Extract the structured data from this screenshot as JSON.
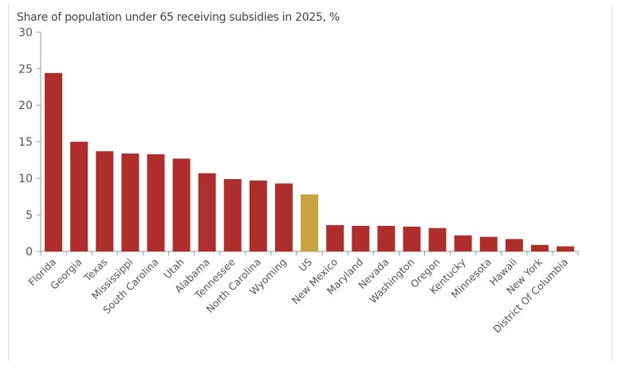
{
  "chart_data": {
    "type": "bar",
    "subtitle": "Share of population under 65 receiving subsidies in 2025, %",
    "categories": [
      "Florida",
      "Georgia",
      "Texas",
      "Mississippi",
      "South Carolina",
      "Utah",
      "Alabama",
      "Tennessee",
      "North Carolina",
      "Wyoming",
      "US",
      "New Mexico",
      "Maryland",
      "Nevada",
      "Washington",
      "Oregon",
      "Kentucky",
      "Minnesota",
      "Hawaii",
      "New York",
      "District Of Columbia"
    ],
    "values": [
      24.4,
      15.0,
      13.7,
      13.4,
      13.3,
      12.7,
      10.7,
      9.9,
      9.7,
      9.3,
      7.8,
      3.6,
      3.5,
      3.5,
      3.4,
      3.2,
      2.2,
      2.0,
      1.7,
      0.9,
      0.7
    ],
    "ylim": [
      0,
      30
    ],
    "yticks": [
      0,
      5,
      10,
      15,
      20,
      25,
      30
    ],
    "grid": false,
    "colors": {
      "state": "#ad2e2b",
      "us": "#c9a43e"
    },
    "highlight": "US"
  }
}
